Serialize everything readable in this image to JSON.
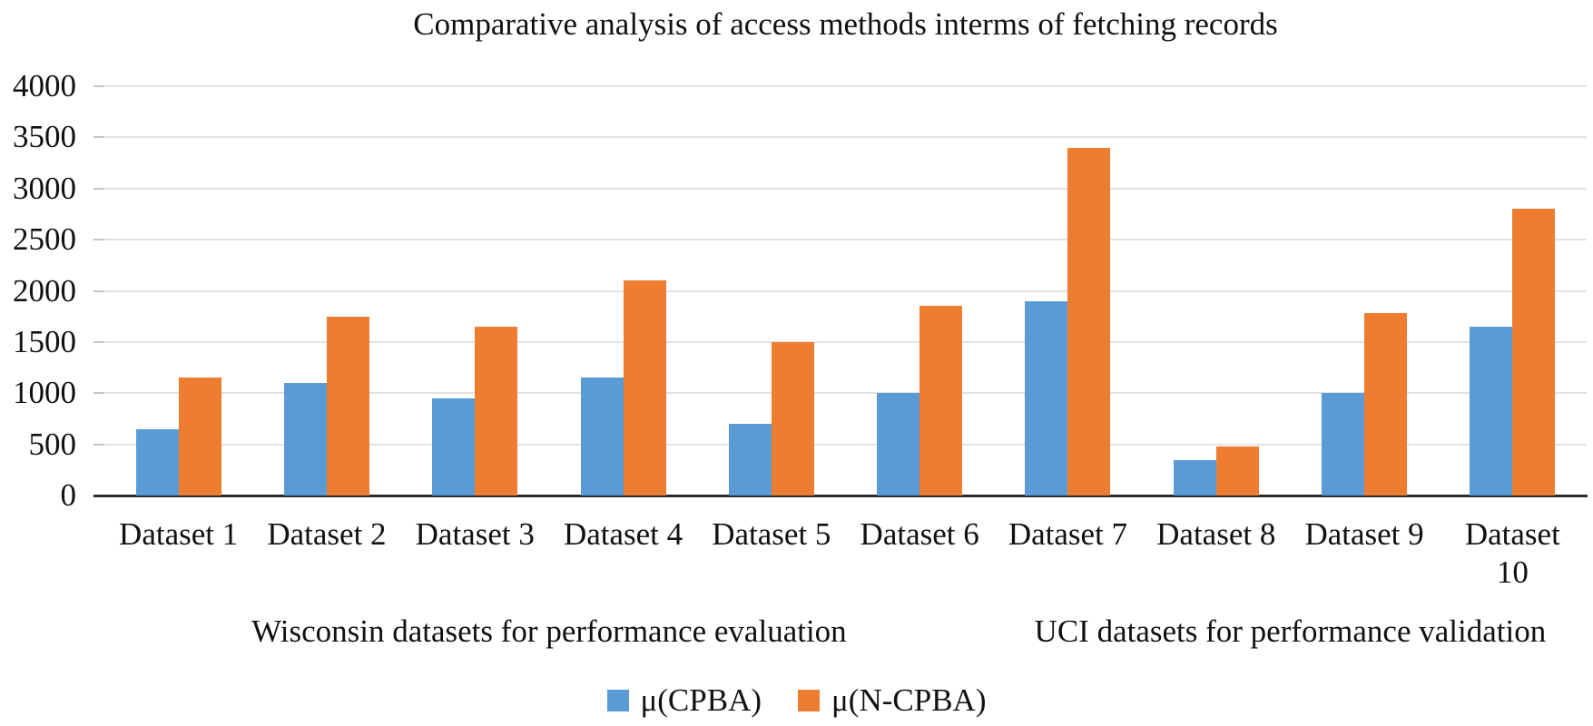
{
  "chart_data": {
    "type": "bar",
    "title": "Comparative analysis of access methods interms of fetching records",
    "categories": [
      "Dataset 1",
      "Dataset 2",
      "Dataset 3",
      "Dataset 4",
      "Dataset 5",
      "Dataset 6",
      "Dataset 7",
      "Dataset 8",
      "Dataset 9",
      "Dataset 10"
    ],
    "x_tick_labels": [
      "Dataset 1",
      "Dataset 2",
      "Dataset 3",
      "Dataset 4",
      "Dataset 5",
      "Dataset 6",
      "Dataset 7",
      "Dataset 8",
      "Dataset 9",
      "Dataset\n10"
    ],
    "series": [
      {
        "name": "μ(CPBA)",
        "color": "#5B9BD5",
        "values": [
          650,
          1100,
          950,
          1150,
          700,
          1000,
          1900,
          350,
          1000,
          1650
        ]
      },
      {
        "name": "μ(N-CPBA)",
        "color": "#ED7D31",
        "values": [
          1150,
          1750,
          1650,
          2100,
          1500,
          1850,
          3400,
          475,
          1780,
          2800
        ]
      }
    ],
    "ylim": [
      0,
      4000
    ],
    "y_ticks": [
      0,
      500,
      1000,
      1500,
      2000,
      2500,
      3000,
      3500,
      4000
    ],
    "grid": "horizontal",
    "legend_position": "bottom",
    "x_groups": [
      {
        "label": "Wisconsin datasets for performance evaluation",
        "start": 0,
        "count": 6
      },
      {
        "label": "UCI datasets for performance validation",
        "start": 6,
        "count": 4
      }
    ]
  },
  "colors": {
    "grid": "#e2e2e2",
    "axis": "#2b2b2b",
    "tick": "#c6c6c6",
    "series_blue": "#5B9BD5",
    "series_orange": "#ED7D31"
  }
}
